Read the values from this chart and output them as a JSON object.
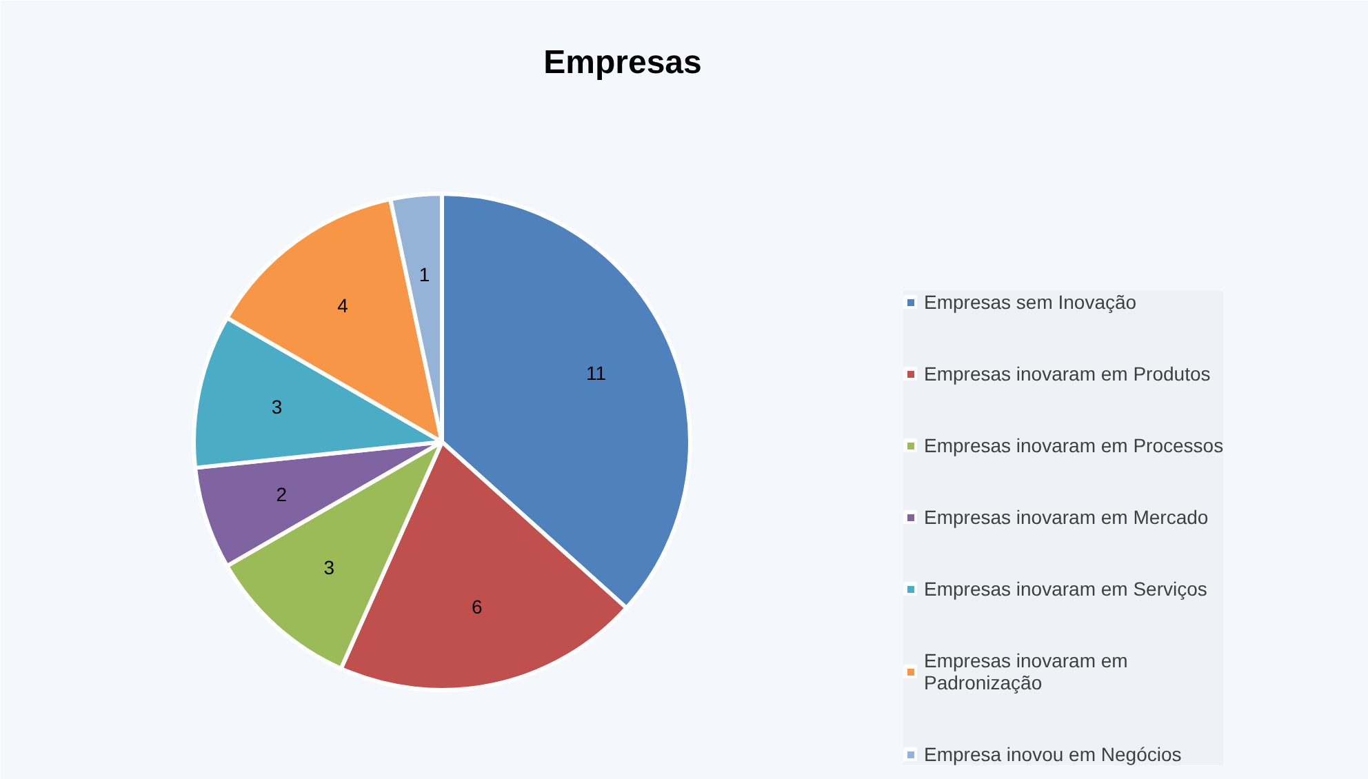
{
  "chart_data": {
    "type": "pie",
    "title": "Empresas",
    "categories": [
      "Empresas sem Inovação",
      "Empresas inovaram em Produtos",
      "Empresas inovaram em Processos",
      "Empresas inovaram em Mercado",
      "Empresas inovaram em Serviços",
      "Empresas inovaram em Padronização",
      "Empresa inovou em Negócios"
    ],
    "values": [
      11,
      6,
      3,
      2,
      3,
      4,
      1
    ],
    "colors": [
      "#4f81bd",
      "#c0504d",
      "#9bbb59",
      "#8064a2",
      "#4bacc6",
      "#f79646",
      "#95b3d7"
    ],
    "data_labels": true,
    "legend": "right"
  }
}
